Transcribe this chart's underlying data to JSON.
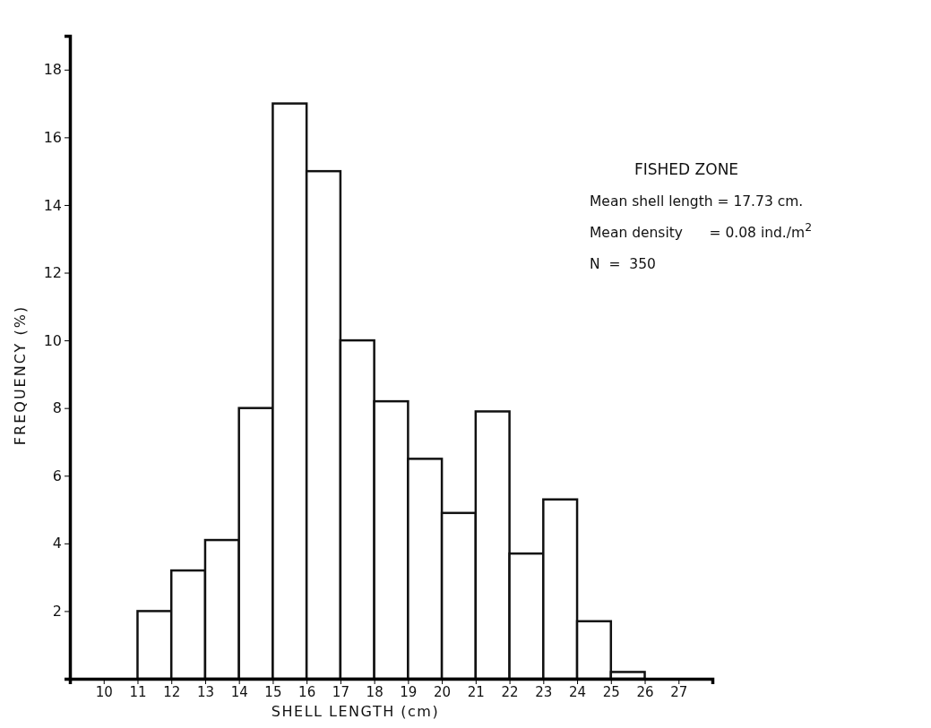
{
  "chart_data": {
    "type": "histogram",
    "xlabel": "SHELL LENGTH (cm)",
    "ylabel": "FREQUENCY (%)",
    "bins": [
      11,
      12,
      13,
      14,
      15,
      16,
      17,
      18,
      19,
      20,
      21,
      22,
      23,
      24,
      25,
      26
    ],
    "values": [
      2,
      3.2,
      4.1,
      8,
      17,
      15,
      10,
      8.2,
      6.5,
      4.9,
      7.9,
      3.7,
      5.3,
      1.7,
      0.2
    ],
    "color": "#ffffff",
    "xlim": [
      9,
      28
    ],
    "xticks": [
      10,
      11,
      12,
      13,
      14,
      15,
      16,
      17,
      18,
      19,
      20,
      21,
      22,
      23,
      24,
      25,
      26,
      27
    ],
    "ylim": [
      0,
      19
    ],
    "yticks": [
      2,
      4,
      6,
      8,
      10,
      12,
      14,
      16,
      18
    ],
    "annotations": [
      "FISHED ZONE",
      "Mean shell length = 17.73 cm.",
      "Mean density      = 0.08 ind./m$^{2}$",
      "N  =  350"
    ]
  }
}
